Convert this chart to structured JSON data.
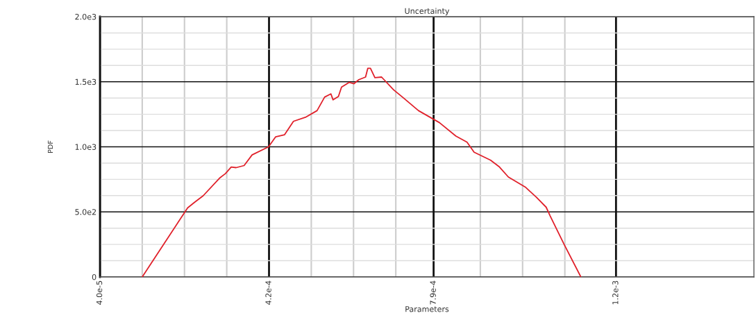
{
  "chart_data": {
    "type": "line",
    "title": "Uncertainty",
    "xlabel": "Parameters",
    "ylabel": "PDF",
    "x": [
      0.000135,
      0.000237,
      0.000252,
      0.000272,
      0.00031,
      0.000322,
      0.000335,
      0.000346,
      0.000364,
      0.000382,
      0.000419,
      0.000435,
      0.000455,
      0.000475,
      0.000502,
      0.000528,
      0.000545,
      0.000559,
      0.000564,
      0.000576,
      0.000583,
      0.0006,
      0.000611,
      0.000622,
      0.000637,
      0.000642,
      0.000648,
      0.000658,
      0.000673,
      0.0007,
      0.00072,
      0.000756,
      0.000803,
      0.00084,
      0.000865,
      0.000881,
      0.000918,
      0.000938,
      0.000958,
      0.000996,
      0.001021,
      0.001043,
      0.001052,
      0.001083,
      0.001121
    ],
    "series": [
      {
        "color": "#e0202a",
        "values": [
          0,
          531,
          572,
          624,
          763,
          794,
          845,
          840,
          856,
          938,
          1000,
          1077,
          1093,
          1196,
          1227,
          1278,
          1382,
          1407,
          1361,
          1387,
          1459,
          1495,
          1485,
          1516,
          1536,
          1603,
          1603,
          1531,
          1536,
          1438,
          1382,
          1278,
          1186,
          1083,
          1036,
          959,
          897,
          845,
          768,
          691,
          613,
          536,
          469,
          253,
          0
        ]
      }
    ],
    "xlim": [
      4e-05,
      0.00151
    ],
    "xticks": [
      {
        "value": 4e-05,
        "label": "4.0e-5"
      },
      {
        "value": 0.000135,
        "label": null
      },
      {
        "value": 0.00023,
        "label": null
      },
      {
        "value": 0.000325,
        "label": null
      },
      {
        "value": 0.00042,
        "label": "4.2e-4"
      },
      {
        "value": 0.000515,
        "label": null
      },
      {
        "value": 0.00061,
        "label": null
      },
      {
        "value": 0.000705,
        "label": null
      },
      {
        "value": 0.00079,
        "label": "7.9e-4"
      },
      {
        "value": 0.000895,
        "label": null
      },
      {
        "value": 0.00099,
        "label": null
      },
      {
        "value": 0.001085,
        "label": null
      },
      {
        "value": 0.0012,
        "label": "1.2e-3"
      }
    ],
    "ylim": [
      0,
      2000
    ],
    "yticks": [
      {
        "value": 0,
        "label": "0"
      },
      {
        "value": 125,
        "label": null
      },
      {
        "value": 250,
        "label": null
      },
      {
        "value": 375,
        "label": null
      },
      {
        "value": 500,
        "label": "5.0e2"
      },
      {
        "value": 625,
        "label": null
      },
      {
        "value": 750,
        "label": null
      },
      {
        "value": 875,
        "label": null
      },
      {
        "value": 1000,
        "label": "1.0e3"
      },
      {
        "value": 1125,
        "label": null
      },
      {
        "value": 1250,
        "label": null
      },
      {
        "value": 1375,
        "label": null
      },
      {
        "value": 1500,
        "label": "1.5e3"
      },
      {
        "value": 1625,
        "label": null
      },
      {
        "value": 1750,
        "label": null
      },
      {
        "value": 1875,
        "label": null
      },
      {
        "value": 2000,
        "label": "2.0e3"
      }
    ],
    "grid": true,
    "marker": "none",
    "line_style": "solid"
  }
}
